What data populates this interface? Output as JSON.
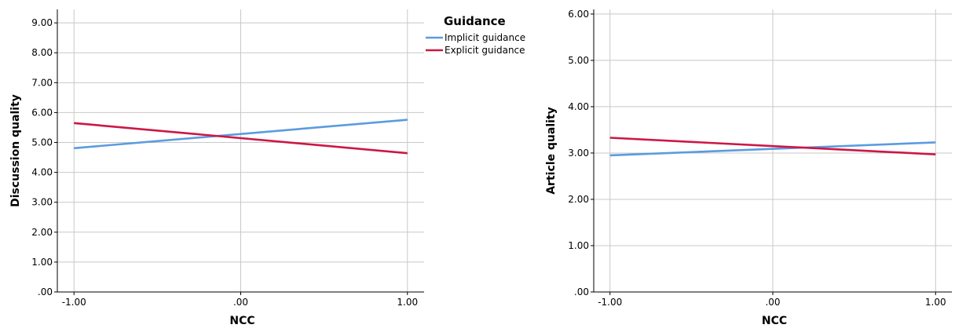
{
  "legend": {
    "title": "Guidance",
    "entries": [
      {
        "name": "Implicit guidance",
        "color": "#5b9be0"
      },
      {
        "name": "Explicit guidance",
        "color": "#cc1745"
      }
    ]
  },
  "chart_data": [
    {
      "type": "line",
      "xlabel": "NCC",
      "ylabel": "Discussion quality",
      "x": [
        -1,
        1
      ],
      "x_tick_labels": [
        "-1.00",
        ".00",
        "1.00"
      ],
      "x_ticks": [
        -1,
        0,
        1
      ],
      "xlim": [
        -1.1,
        1.1
      ],
      "ylim": [
        0,
        9.45
      ],
      "y_ticks": [
        0,
        1,
        2,
        3,
        4,
        5,
        6,
        7,
        8,
        9
      ],
      "y_tick_labels": [
        ".00",
        "1.00",
        "2.00",
        "3.00",
        "4.00",
        "5.00",
        "6.00",
        "7.00",
        "8.00",
        "9.00"
      ],
      "grid": true,
      "legend_position": "right",
      "series": [
        {
          "name": "Implicit guidance",
          "values": [
            4.81,
            5.76
          ],
          "color": "#5b9be0"
        },
        {
          "name": "Explicit guidance",
          "values": [
            5.65,
            4.64
          ],
          "color": "#cc1745"
        }
      ]
    },
    {
      "type": "line",
      "xlabel": "NCC",
      "ylabel": "Article quality",
      "x": [
        -1,
        1
      ],
      "x_tick_labels": [
        "-1.00",
        ".00",
        "1.00"
      ],
      "x_ticks": [
        -1,
        0,
        1
      ],
      "xlim": [
        -1.1,
        1.1
      ],
      "ylim": [
        0,
        6.1
      ],
      "y_ticks": [
        0,
        1,
        2,
        3,
        4,
        5,
        6
      ],
      "y_tick_labels": [
        ".00",
        "1.00",
        "2.00",
        "3.00",
        "4.00",
        "5.00",
        "6.00"
      ],
      "grid": true,
      "series": [
        {
          "name": "Implicit guidance",
          "values": [
            2.95,
            3.23
          ],
          "color": "#5b9be0"
        },
        {
          "name": "Explicit guidance",
          "values": [
            3.33,
            2.97
          ],
          "color": "#cc1745"
        }
      ]
    }
  ]
}
